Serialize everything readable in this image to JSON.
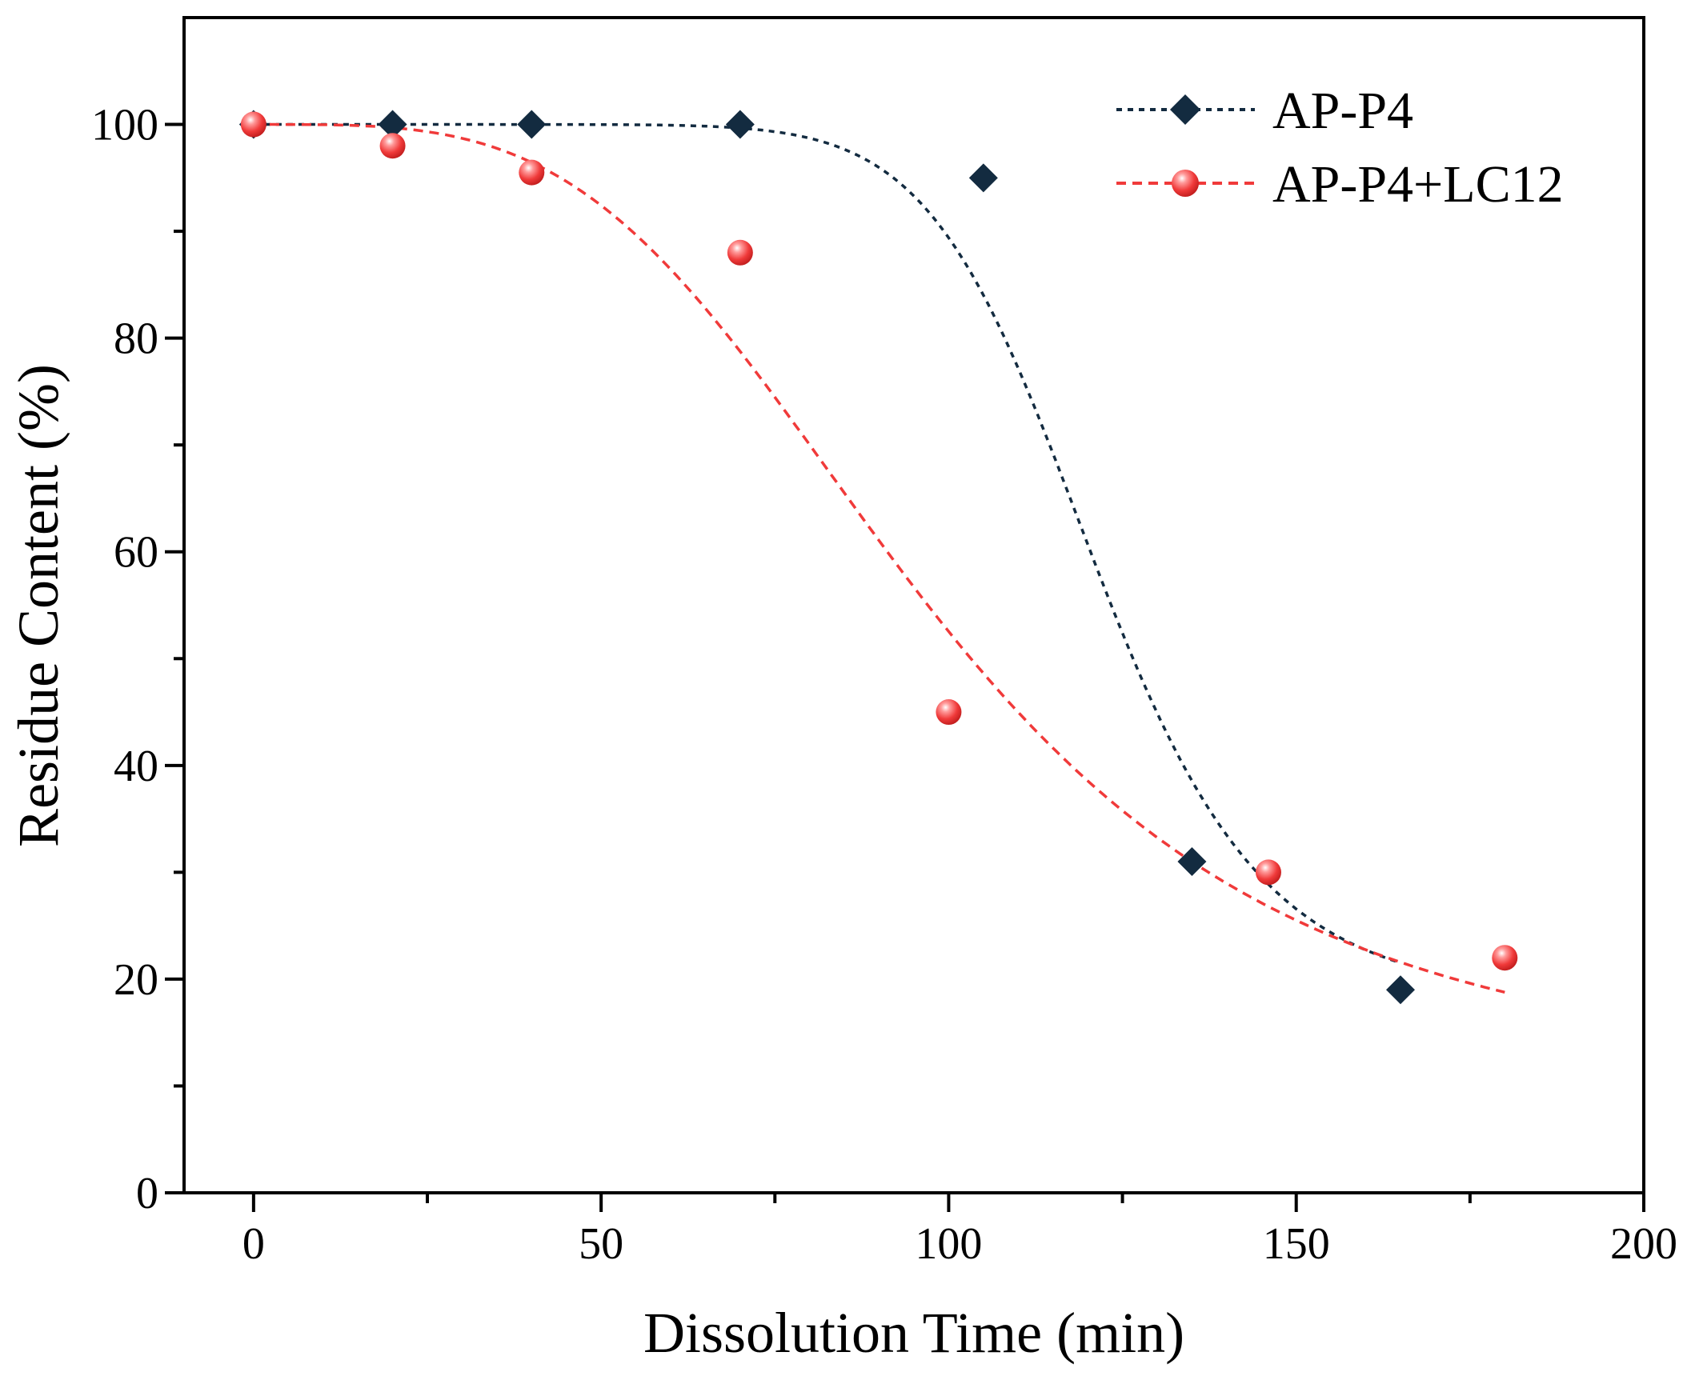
{
  "chart_data": {
    "type": "scatter",
    "title": "",
    "xlabel": "Dissolution Time (min)",
    "ylabel": "Residue Content (%)",
    "xlim": [
      -10,
      200
    ],
    "ylim": [
      0,
      110
    ],
    "xticks": [
      0,
      50,
      100,
      150,
      200
    ],
    "xticks_minor": [
      25,
      75,
      125,
      175
    ],
    "yticks": [
      0,
      20,
      40,
      60,
      80,
      100
    ],
    "yticks_minor": [
      10,
      30,
      50,
      70,
      90
    ],
    "xtick_labels": [
      "0",
      "50",
      "100",
      "150",
      "200"
    ],
    "ytick_labels": [
      "0",
      "20",
      "40",
      "60",
      "80",
      "100"
    ],
    "grid": false,
    "legend_position": "top-right",
    "series": [
      {
        "name": "AP-P4",
        "marker": "diamond",
        "color": "#132b40",
        "line_style": "dotted fitted curve",
        "x": [
          0,
          20,
          40,
          70,
          105,
          135,
          165
        ],
        "y": [
          100,
          100,
          100,
          100,
          95,
          31,
          19
        ]
      },
      {
        "name": "AP-P4+LC12",
        "marker": "sphere",
        "color": "#f03a3a",
        "line_style": "dashed fitted curve",
        "x": [
          0,
          20,
          40,
          70,
          100,
          146,
          180
        ],
        "y": [
          100,
          98,
          95.5,
          88,
          45,
          30,
          22
        ]
      }
    ]
  }
}
